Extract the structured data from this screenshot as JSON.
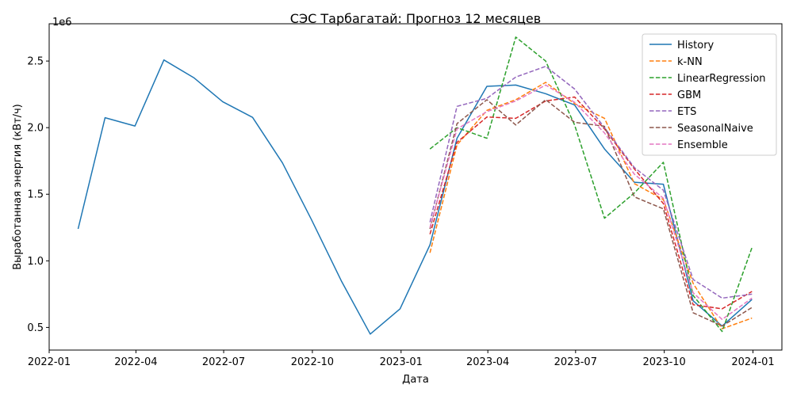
{
  "chart_data": {
    "type": "line",
    "title": "СЭС Тарбагатай: Прогноз 12 месяцев",
    "xlabel": "Дата",
    "ylabel": "Выработанная энергия (кВт/ч)",
    "y_multiplier_label": "1e6",
    "xlim": [
      "2022-01-01",
      "2024-01-31"
    ],
    "ylim": [
      330000,
      2780000
    ],
    "x_ticks": [
      {
        "date": "2022-01-01",
        "label": "2022-01"
      },
      {
        "date": "2022-04-01",
        "label": "2022-04"
      },
      {
        "date": "2022-07-01",
        "label": "2022-07"
      },
      {
        "date": "2022-10-01",
        "label": "2022-10"
      },
      {
        "date": "2023-01-01",
        "label": "2023-01"
      },
      {
        "date": "2023-04-01",
        "label": "2023-04"
      },
      {
        "date": "2023-07-01",
        "label": "2023-07"
      },
      {
        "date": "2023-10-01",
        "label": "2023-10"
      },
      {
        "date": "2024-01-01",
        "label": "2024-01"
      }
    ],
    "y_ticks": [
      {
        "value": 500000,
        "label": "0.5"
      },
      {
        "value": 1000000,
        "label": "1.0"
      },
      {
        "value": 1500000,
        "label": "1.5"
      },
      {
        "value": 2000000,
        "label": "2.0"
      },
      {
        "value": 2500000,
        "label": "2.5"
      }
    ],
    "grid": false,
    "legend_position": "top-right",
    "series": [
      {
        "name": "History",
        "color": "#1f77b4",
        "style": "solid",
        "x": [
          "2022-01-31",
          "2022-02-28",
          "2022-03-31",
          "2022-04-30",
          "2022-05-31",
          "2022-06-30",
          "2022-07-31",
          "2022-08-31",
          "2022-09-30",
          "2022-10-31",
          "2022-11-30",
          "2022-12-31",
          "2023-01-31",
          "2023-02-28",
          "2023-03-31",
          "2023-04-30",
          "2023-05-31",
          "2023-06-30",
          "2023-07-31",
          "2023-08-31",
          "2023-09-30",
          "2023-10-31",
          "2023-11-30",
          "2023-12-31"
        ],
        "y": [
          1240000,
          2075000,
          2012000,
          2508000,
          2375000,
          2195000,
          2077000,
          1735000,
          1310000,
          850000,
          450000,
          640000,
          1120000,
          1920000,
          2310000,
          2320000,
          2255000,
          2170000,
          1840000,
          1590000,
          1575000,
          700000,
          510000,
          710000
        ]
      },
      {
        "name": "k-NN",
        "color": "#ff7f0e",
        "style": "dashed",
        "x": [
          "2023-01-31",
          "2023-02-28",
          "2023-03-31",
          "2023-04-30",
          "2023-05-31",
          "2023-06-30",
          "2023-07-31",
          "2023-08-31",
          "2023-09-30",
          "2023-10-31",
          "2023-11-30",
          "2023-12-31"
        ],
        "y": [
          1060000,
          1870000,
          2130000,
          2210000,
          2340000,
          2180000,
          2070000,
          1580000,
          1460000,
          830000,
          490000,
          570000
        ]
      },
      {
        "name": "LinearRegression",
        "color": "#2ca02c",
        "style": "dashed",
        "x": [
          "2023-01-31",
          "2023-02-28",
          "2023-03-31",
          "2023-04-30",
          "2023-05-31",
          "2023-06-30",
          "2023-07-31",
          "2023-08-31",
          "2023-09-30",
          "2023-10-31",
          "2023-11-30",
          "2023-12-31"
        ],
        "y": [
          1840000,
          2000000,
          1920000,
          2680000,
          2500000,
          2020000,
          1320000,
          1510000,
          1740000,
          740000,
          470000,
          1100000
        ]
      },
      {
        "name": "GBM",
        "color": "#d62728",
        "style": "dashed",
        "x": [
          "2023-01-31",
          "2023-02-28",
          "2023-03-31",
          "2023-04-30",
          "2023-05-31",
          "2023-06-30",
          "2023-07-31",
          "2023-08-31",
          "2023-09-30",
          "2023-10-31",
          "2023-11-30",
          "2023-12-31"
        ],
        "y": [
          1200000,
          1890000,
          2080000,
          2070000,
          2200000,
          2230000,
          1990000,
          1690000,
          1430000,
          670000,
          640000,
          770000
        ]
      },
      {
        "name": "ETS",
        "color": "#9467bd",
        "style": "dashed",
        "x": [
          "2023-01-31",
          "2023-02-28",
          "2023-03-31",
          "2023-04-30",
          "2023-05-31",
          "2023-06-30",
          "2023-07-31",
          "2023-08-31",
          "2023-09-30",
          "2023-10-31",
          "2023-11-30",
          "2023-12-31"
        ],
        "y": [
          1290000,
          2160000,
          2220000,
          2380000,
          2460000,
          2290000,
          2000000,
          1700000,
          1530000,
          860000,
          720000,
          750000
        ]
      },
      {
        "name": "SeasonalNaive",
        "color": "#8c564b",
        "style": "dashed",
        "x": [
          "2023-01-31",
          "2023-02-28",
          "2023-03-31",
          "2023-04-30",
          "2023-05-31",
          "2023-06-30",
          "2023-07-31",
          "2023-08-31",
          "2023-09-30",
          "2023-10-31",
          "2023-11-30",
          "2023-12-31"
        ],
        "y": [
          1240000,
          2030000,
          2210000,
          2020000,
          2210000,
          2040000,
          2010000,
          1480000,
          1390000,
          610000,
          510000,
          650000
        ]
      },
      {
        "name": "Ensemble",
        "color": "#e377c2",
        "style": "dashed",
        "x": [
          "2023-01-31",
          "2023-02-28",
          "2023-03-31",
          "2023-04-30",
          "2023-05-31",
          "2023-06-30",
          "2023-07-31",
          "2023-08-31",
          "2023-09-30",
          "2023-10-31",
          "2023-11-30",
          "2023-12-31"
        ],
        "y": [
          1250000,
          1990000,
          2120000,
          2200000,
          2320000,
          2190000,
          1960000,
          1650000,
          1470000,
          760000,
          560000,
          720000
        ]
      }
    ]
  }
}
